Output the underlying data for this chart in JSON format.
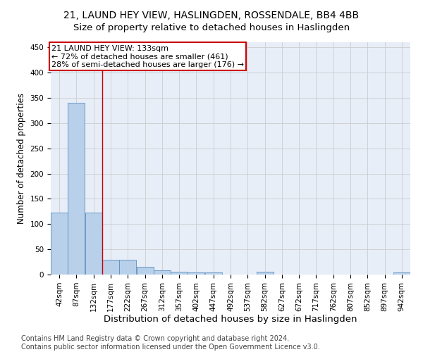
{
  "title": "21, LAUND HEY VIEW, HASLINGDEN, ROSSENDALE, BB4 4BB",
  "subtitle": "Size of property relative to detached houses in Haslingden",
  "xlabel": "Distribution of detached houses by size in Haslingden",
  "ylabel": "Number of detached properties",
  "bin_labels": [
    "42sqm",
    "87sqm",
    "132sqm",
    "177sqm",
    "222sqm",
    "267sqm",
    "312sqm",
    "357sqm",
    "402sqm",
    "447sqm",
    "492sqm",
    "537sqm",
    "582sqm",
    "627sqm",
    "672sqm",
    "717sqm",
    "762sqm",
    "807sqm",
    "852sqm",
    "897sqm",
    "942sqm"
  ],
  "bar_values": [
    122,
    340,
    122,
    29,
    29,
    15,
    8,
    6,
    4,
    4,
    0,
    0,
    5,
    0,
    0,
    0,
    0,
    0,
    0,
    0,
    4
  ],
  "bar_color": "#b8d0ea",
  "bar_edge_color": "#5a8fc0",
  "grid_color": "#cccccc",
  "bg_color": "#e8eef8",
  "annotation_text_line1": "21 LAUND HEY VIEW: 133sqm",
  "annotation_text_line2": "← 72% of detached houses are smaller (461)",
  "annotation_text_line3": "28% of semi-detached houses are larger (176) →",
  "annotation_box_color": "#cc0000",
  "vline_color": "#cc0000",
  "footer1": "Contains HM Land Registry data © Crown copyright and database right 2024.",
  "footer2": "Contains public sector information licensed under the Open Government Licence v3.0.",
  "ylim": [
    0,
    460
  ],
  "yticks": [
    0,
    50,
    100,
    150,
    200,
    250,
    300,
    350,
    400,
    450
  ],
  "title_fontsize": 10,
  "subtitle_fontsize": 9.5,
  "xlabel_fontsize": 9.5,
  "ylabel_fontsize": 8.5,
  "tick_fontsize": 7.5,
  "annot_fontsize": 8,
  "footer_fontsize": 7
}
